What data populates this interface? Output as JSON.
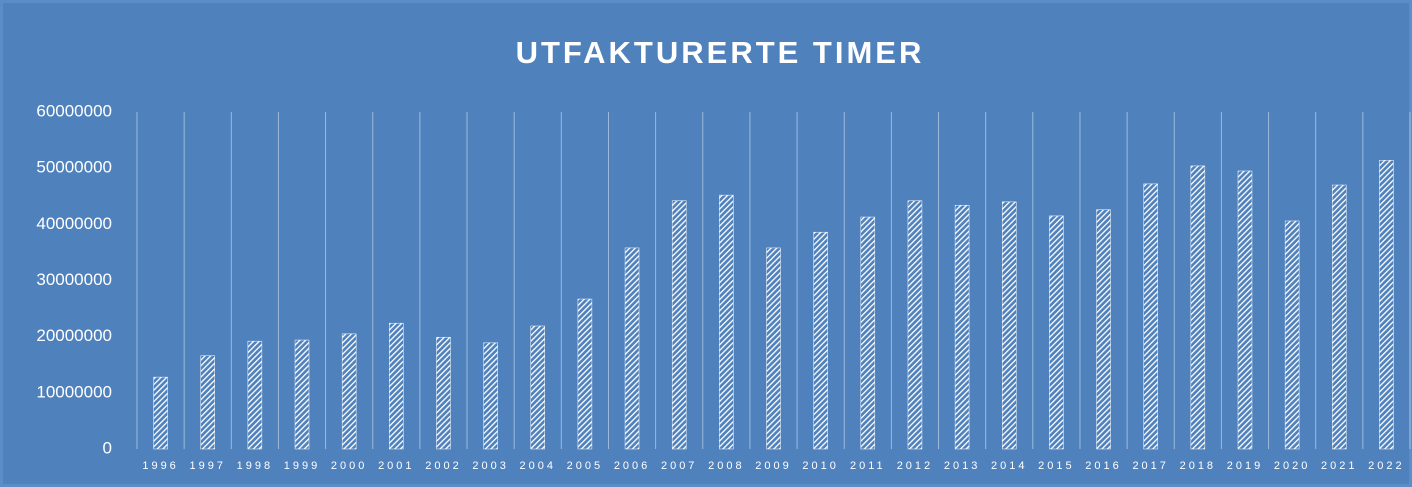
{
  "chart_data": {
    "type": "bar",
    "title": "UTFAKTURERTE TIMER",
    "categories": [
      "1996",
      "1997",
      "1998",
      "1999",
      "2000",
      "2001",
      "2002",
      "2003",
      "2004",
      "2005",
      "2006",
      "2007",
      "2008",
      "2009",
      "2010",
      "2011",
      "2012",
      "2013",
      "2014",
      "2015",
      "2016",
      "2017",
      "2018",
      "2019",
      "2020",
      "2021",
      "2022"
    ],
    "values": [
      12800000,
      16600000,
      19200000,
      19400000,
      20500000,
      22400000,
      19900000,
      18900000,
      21900000,
      26700000,
      35800000,
      44200000,
      45200000,
      35800000,
      38600000,
      41300000,
      44200000,
      43400000,
      44000000,
      41500000,
      42600000,
      47200000,
      50400000,
      49500000,
      40600000,
      47000000,
      51400000
    ],
    "color": "#ffffff",
    "ylim": [
      0,
      60000000
    ],
    "yticks": [
      0,
      10000000,
      20000000,
      30000000,
      40000000,
      50000000,
      60000000
    ],
    "grid": true
  }
}
